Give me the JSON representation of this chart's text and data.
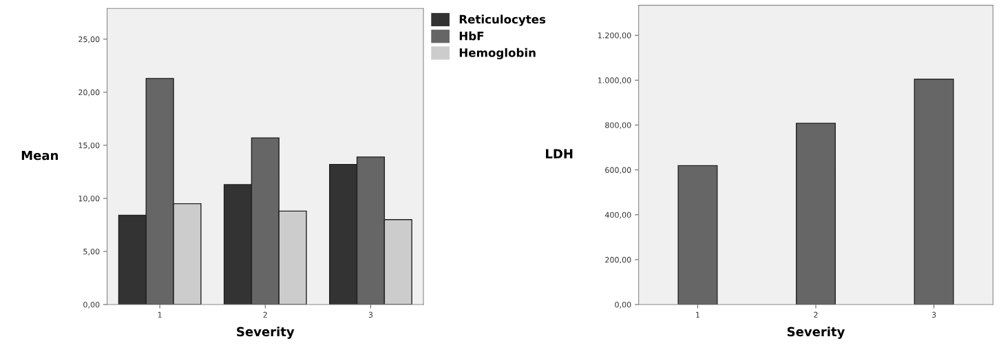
{
  "chart_data": [
    {
      "type": "bar",
      "xlabel": "Severity",
      "ylabel": "Mean",
      "categories": [
        "1",
        "2",
        "3"
      ],
      "series": [
        {
          "name": "Reticulocytes",
          "color": "#333333",
          "values": [
            8.4,
            11.3,
            13.2
          ]
        },
        {
          "name": "HbF",
          "color": "#666666",
          "values": [
            21.3,
            15.7,
            13.9
          ]
        },
        {
          "name": "Hemoglobin",
          "color": "#cccccc",
          "values": [
            9.5,
            8.8,
            8.0
          ]
        }
      ],
      "ylim": [
        0,
        27.9
      ],
      "yticks": [
        {
          "value": 0,
          "label": "0,00"
        },
        {
          "value": 5,
          "label": "5,00"
        },
        {
          "value": 10,
          "label": "10,00"
        },
        {
          "value": 15,
          "label": "15,00"
        },
        {
          "value": 20,
          "label": "20,00"
        },
        {
          "value": 25,
          "label": "25,00"
        }
      ],
      "grid": false,
      "legend": "top right"
    },
    {
      "type": "bar",
      "xlabel": "Severity",
      "ylabel": "LDH",
      "categories": [
        "1",
        "2",
        "3"
      ],
      "series": [
        {
          "color": "#666666",
          "values": [
            619,
            808,
            1004
          ]
        }
      ],
      "ylim": [
        0,
        1334
      ],
      "yticks": [
        {
          "value": 0,
          "label": "0,00"
        },
        {
          "value": 200,
          "label": "200,00"
        },
        {
          "value": 400,
          "label": "400,00"
        },
        {
          "value": 600,
          "label": "600,00"
        },
        {
          "value": 800,
          "label": "800,00"
        },
        {
          "value": 1000,
          "label": "1.000,00"
        },
        {
          "value": 1200,
          "label": "1.200,00"
        }
      ],
      "grid": false
    }
  ]
}
